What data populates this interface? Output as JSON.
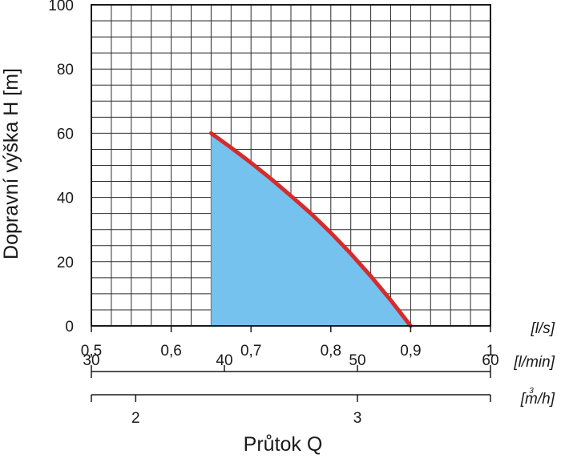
{
  "chart_data": {
    "type": "area",
    "title": "",
    "ylabel": "Dopravní výška H [m]",
    "xlabel": "Průtok Q",
    "ylim": [
      0,
      100
    ],
    "y_ticks": [
      "0",
      "20",
      "40",
      "60",
      "80",
      "100"
    ],
    "x_axes": [
      {
        "unit": "[l/s]",
        "range": [
          0.5,
          1.0
        ],
        "ticks": [
          {
            "value": 0.5,
            "label": "0,5"
          },
          {
            "value": 0.6,
            "label": "0,6"
          },
          {
            "value": 0.7,
            "label": "0,7"
          },
          {
            "value": 0.8,
            "label": "0,8"
          },
          {
            "value": 0.9,
            "label": "0,9"
          },
          {
            "value": 1.0,
            "label": "1"
          }
        ]
      },
      {
        "unit": "[l/min]",
        "range": [
          30,
          60
        ],
        "ticks": [
          {
            "value": 30,
            "label": "30"
          },
          {
            "value": 40,
            "label": "40"
          },
          {
            "value": 50,
            "label": "50"
          },
          {
            "value": 60,
            "label": "60"
          }
        ]
      },
      {
        "unit": "[m/h]",
        "unit_sup": "3",
        "range": [
          1.8,
          3.6
        ],
        "ticks": [
          {
            "value": 2,
            "label": "2"
          },
          {
            "value": 3,
            "label": "3"
          }
        ]
      }
    ],
    "grid": true,
    "series": [
      {
        "x": [
          0.65,
          0.675,
          0.7,
          0.725,
          0.75,
          0.775,
          0.8,
          0.825,
          0.85,
          0.875,
          0.9
        ],
        "y": [
          60,
          55.5,
          50.8,
          45.8,
          40.5,
          35,
          29,
          22.5,
          15.5,
          8,
          0
        ],
        "color": "#d62b2b",
        "fill": "#76c2ee"
      }
    ]
  }
}
